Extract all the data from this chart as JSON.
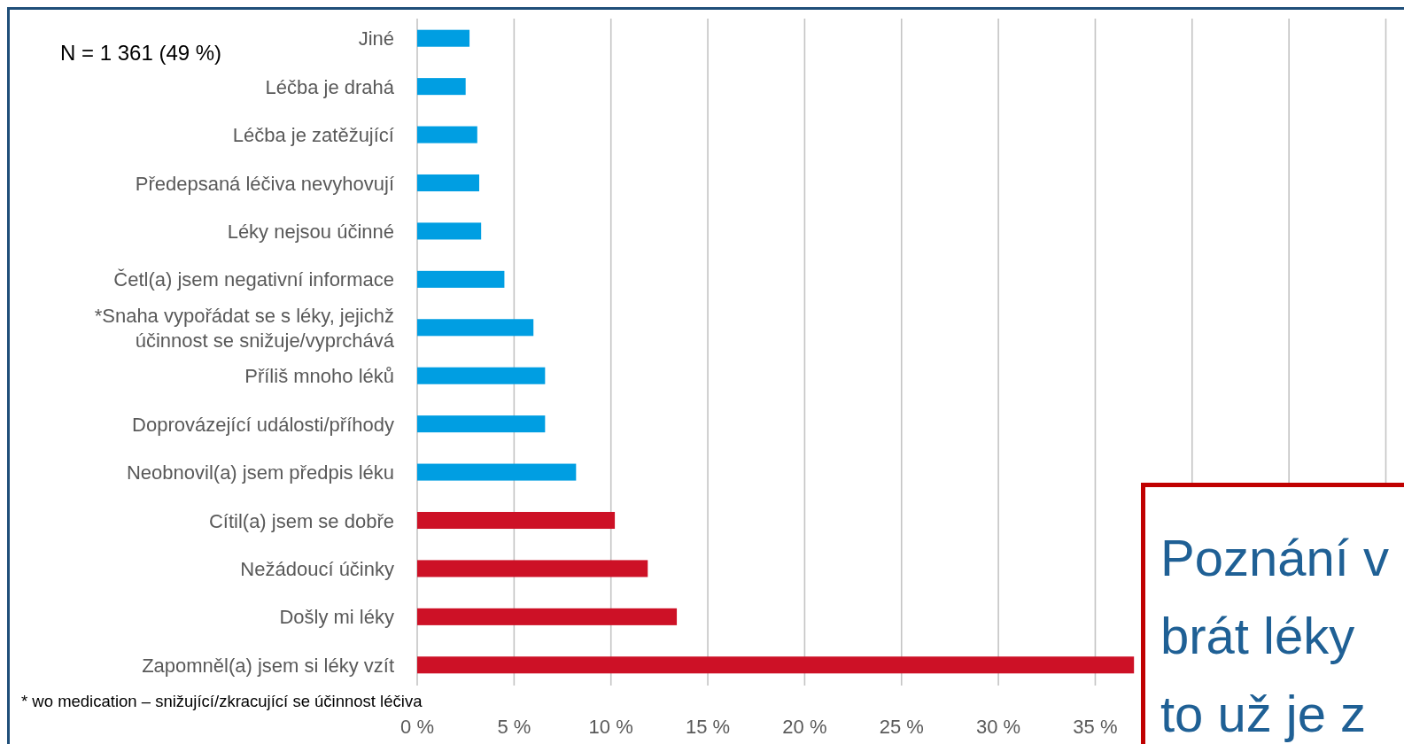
{
  "chart_data": {
    "type": "bar",
    "orientation": "horizontal",
    "categories": [
      "Jiné",
      "Léčba je drahá",
      "Léčba je zatěžující",
      "Předepsaná léčiva nevyhovují",
      "Léky nejsou účinné",
      "Četl(a) jsem negativní informace",
      "*Snaha vypořádat se s léky, jejichž účinnost se snižuje/vyprchává",
      "Příliš mnoho léků",
      "Doprovázející události/příhody",
      "Neobnovil(a) jsem předpis léku",
      "Cítil(a) jsem se dobře",
      "Nežádoucí účinky",
      "Došly mi léky",
      "Zapomněl(a) jsem si léky vzít"
    ],
    "values": [
      2.7,
      2.5,
      3.1,
      3.2,
      3.3,
      4.5,
      6.0,
      6.6,
      6.6,
      8.2,
      10.2,
      11.9,
      13.4,
      37
    ],
    "colors": [
      "#009ee2",
      "#009ee2",
      "#009ee2",
      "#009ee2",
      "#009ee2",
      "#009ee2",
      "#009ee2",
      "#009ee2",
      "#009ee2",
      "#009ee2",
      "#cd1126",
      "#cd1126",
      "#cd1126",
      "#cd1126"
    ],
    "xlim": [
      0,
      50
    ],
    "xticks": [
      {
        "value": 0,
        "label": "0 %"
      },
      {
        "value": 5,
        "label": "5 %"
      },
      {
        "value": 10,
        "label": "10 %"
      },
      {
        "value": 15,
        "label": "15 %"
      },
      {
        "value": 20,
        "label": "20 %"
      },
      {
        "value": 25,
        "label": "25 %"
      },
      {
        "value": 30,
        "label": "30 %"
      },
      {
        "value": 35,
        "label": "35 %"
      },
      {
        "value": 40,
        "label": null
      },
      {
        "value": 45,
        "label": null
      },
      {
        "value": 50,
        "label": null
      }
    ],
    "grid": "x",
    "annotations": [
      "N = 1 361 (49 %)",
      "* wo medication – snižující/zkracující se účinnost léčiva",
      "Poznání v\nbrát léky\nto už je z"
    ]
  }
}
